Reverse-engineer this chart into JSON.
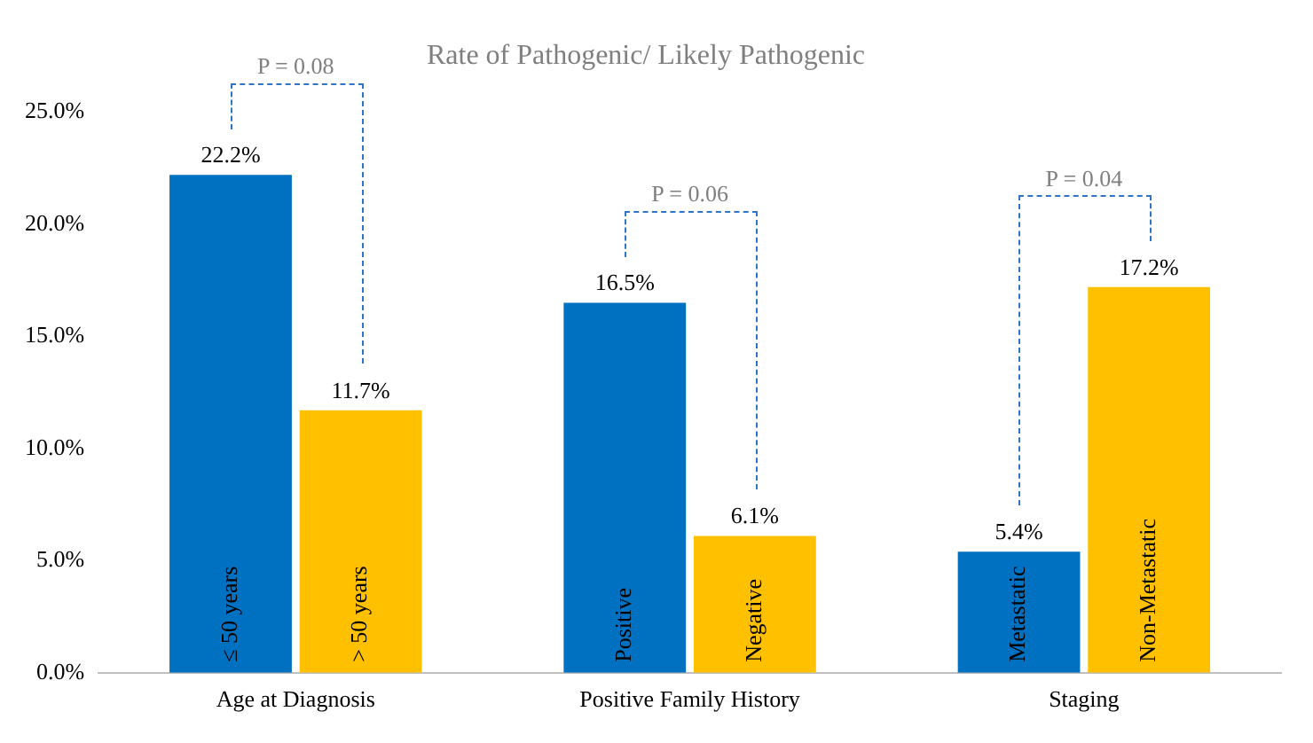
{
  "chart_data": {
    "type": "bar",
    "title": "Rate of Pathogenic/ Likely Pathogenic",
    "categories": [
      "Age at Diagnosis",
      "Positive Family History",
      "Staging"
    ],
    "series": [
      {
        "color": "#0070c0",
        "values": [
          22.2,
          16.5,
          5.4
        ],
        "value_labels": [
          "22.2%",
          "16.5%",
          "5.4%"
        ]
      },
      {
        "color": "#ffc000",
        "values": [
          11.7,
          6.1,
          17.2
        ],
        "value_labels": [
          "11.7%",
          "6.1%",
          "17.2%"
        ]
      }
    ],
    "ylim": [
      0,
      25
    ],
    "yticks": [
      {
        "value": 0,
        "label": "0.0%"
      },
      {
        "value": 5,
        "label": "5.0%"
      },
      {
        "value": 10,
        "label": "10.0%"
      },
      {
        "value": 15,
        "label": "15.0%"
      },
      {
        "value": 20,
        "label": "20.0%"
      },
      {
        "value": 25,
        "label": "25.0%"
      }
    ],
    "grid": false,
    "legend": false,
    "annotations": [
      {
        "text": "≤ 50 years",
        "x": "Age at Diagnosis"
      },
      {
        "text": "> 50 years",
        "x": "Age at Diagnosis"
      },
      {
        "text": "Positive",
        "x": "Positive Family History"
      },
      {
        "text": "Negative",
        "x": "Positive Family History"
      },
      {
        "text": "Metastatic",
        "x": "Staging"
      },
      {
        "text": "Non-Metastatic",
        "x": "Staging"
      },
      "P = 0.08",
      "P = 0.06",
      "P = 0.04"
    ]
  }
}
